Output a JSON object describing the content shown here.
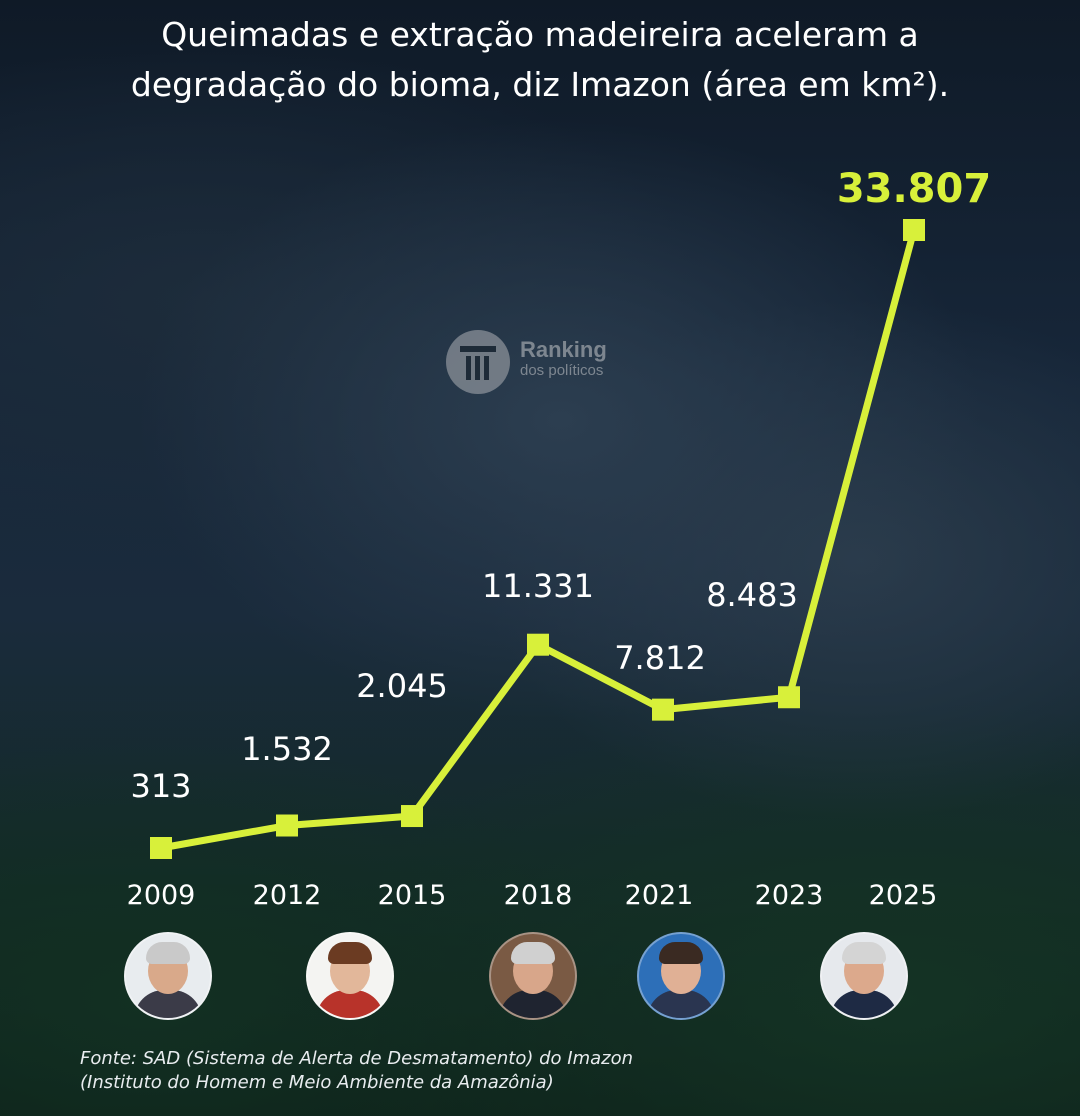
{
  "title_lines": [
    "Queimadas e extração madeireira aceleram a",
    "degradação do bioma, diz Imazon (área em km²)."
  ],
  "watermark": {
    "brand": "Ranking",
    "sub": "dos políticos"
  },
  "colors": {
    "line": "#d8f03a",
    "labels": "#ffffff",
    "highlight": "#d8f03a"
  },
  "chart_data": {
    "type": "line",
    "title": "Queimadas e extração madeireira aceleram a degradação do bioma, diz Imazon (área em km²).",
    "categories": [
      "2009",
      "2012",
      "2015",
      "2018",
      "2021",
      "2023",
      "2025"
    ],
    "values": [
      313,
      1532,
      2045,
      11331,
      7812,
      8483,
      33807
    ],
    "value_labels": [
      "313",
      "1.532",
      "2.045",
      "11.331",
      "7.812",
      "8.483",
      "33.807"
    ],
    "highlight_index": 6,
    "xlabel": "",
    "ylabel": "",
    "ylim": [
      0,
      35000
    ],
    "grid": false,
    "legend": "none"
  },
  "avatars": [
    {
      "icon": "portrait-icon",
      "year": "2009"
    },
    {
      "icon": "portrait-icon",
      "year": "2012"
    },
    {
      "icon": "portrait-icon",
      "year": "2018"
    },
    {
      "icon": "portrait-icon",
      "year": "2021"
    },
    {
      "icon": "portrait-icon",
      "year": "2025"
    }
  ],
  "source_lines": [
    "Fonte: SAD (Sistema de Alerta de Desmatamento) do Imazon",
    "(Instituto do Homem e Meio Ambiente da Amazônia)"
  ]
}
